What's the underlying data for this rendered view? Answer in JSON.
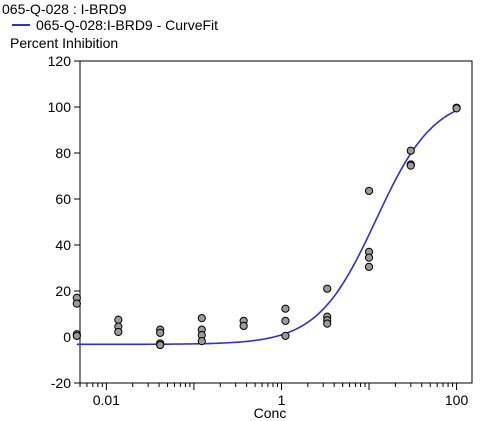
{
  "chart_data": {
    "type": "scatter",
    "title": "",
    "legend": [
      {
        "name": "065-Q-028  : I-BRD9",
        "marker": "circle"
      },
      {
        "name": "065-Q-028:I-BRD9 - CurveFit",
        "marker": "line"
      }
    ],
    "xlabel": "Conc",
    "ylabel": "Percent Inhibition",
    "xscale": "log",
    "xlim": [
      0.005,
      150
    ],
    "ylim": [
      -20,
      120
    ],
    "yticks": [
      -20,
      0,
      20,
      40,
      60,
      80,
      100,
      120
    ],
    "xticks": [
      0.01,
      1,
      100
    ],
    "xtick_labels": [
      "0.01",
      "1",
      "100"
    ],
    "grid": false,
    "legend_position": "top-left",
    "colors": {
      "curve": "#2f2fe0",
      "point_fill": "#9a9a9a",
      "point_edge": "#000000"
    },
    "series": [
      {
        "name": "065-Q-028  : I-BRD9",
        "points": [
          [
            0.0046,
            17
          ],
          [
            0.0046,
            14.5
          ],
          [
            0.0046,
            1.2
          ],
          [
            0.0046,
            0.5
          ],
          [
            0.0137,
            7.5
          ],
          [
            0.0137,
            4.5
          ],
          [
            0.0137,
            2.2
          ],
          [
            0.0412,
            3.2
          ],
          [
            0.0412,
            1.8
          ],
          [
            0.0412,
            -2.8
          ],
          [
            0.0412,
            -3.5
          ],
          [
            0.123,
            8.2
          ],
          [
            0.123,
            3.2
          ],
          [
            0.123,
            0.8
          ],
          [
            0.123,
            -1.8
          ],
          [
            0.37,
            7.0
          ],
          [
            0.37,
            4.8
          ],
          [
            1.11,
            12.3
          ],
          [
            1.11,
            7.0
          ],
          [
            1.11,
            0.5
          ],
          [
            3.33,
            21
          ],
          [
            3.33,
            8.8
          ],
          [
            3.33,
            7.3
          ],
          [
            3.33,
            5.8
          ],
          [
            10,
            63.5
          ],
          [
            10,
            37
          ],
          [
            10,
            34.5
          ],
          [
            10,
            30.5
          ],
          [
            30,
            81
          ],
          [
            30,
            75
          ],
          [
            30,
            74.5
          ],
          [
            100,
            99.7
          ],
          [
            100,
            99.4
          ]
        ]
      },
      {
        "name": "065-Q-028:I-BRD9 - CurveFit",
        "fit": {
          "model": "4PL",
          "bottom": -3.2,
          "top": 105,
          "ec50": 12,
          "hill": 1.3,
          "x_range": [
            0.0046,
            100
          ]
        }
      }
    ]
  }
}
